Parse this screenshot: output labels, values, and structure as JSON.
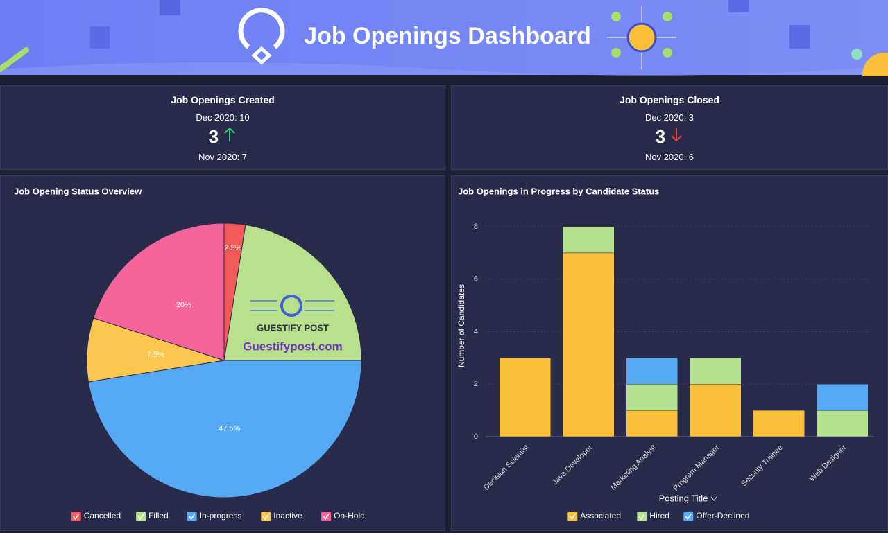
{
  "header": {
    "title": "Job Openings Dashboard"
  },
  "kpis": [
    {
      "title": "Job Openings Created",
      "current": "Dec 2020: 10",
      "value": 3,
      "previous": "Nov 2020: 7"
    },
    {
      "title": "Job Openings Closed",
      "current": "Dec 2020: 3",
      "value": 3,
      "previous": "Nov 2020: 6"
    }
  ],
  "watermark": {
    "brand": "GUESTIFY POST",
    "site": "Guestifypost.com"
  },
  "chart_data": [
    {
      "type": "pie",
      "title": "Job Opening Status Overview",
      "categories": [
        "Cancelled",
        "Filled",
        "In-progress",
        "Inactive",
        "On-Hold"
      ],
      "values": [
        2.5,
        22.5,
        47.5,
        7.5,
        20
      ],
      "value_labels": [
        "2.5%",
        null,
        "47.5%",
        "7.5%",
        "20%"
      ],
      "colors": [
        "#f25a5a",
        "#b9e08c",
        "#55a9f5",
        "#fbc74e",
        "#f5649a"
      ]
    },
    {
      "type": "stacked_bar",
      "title": "Job Openings in Progress by Candidate Status",
      "categories": [
        "Decision Scientist",
        "Java Developer",
        "Marketing Analyst",
        "Program Manager",
        "Security Trainee",
        "Web Designer"
      ],
      "series": [
        {
          "name": "Associated",
          "color": "#fbbf3a",
          "values": [
            3,
            7,
            1,
            2,
            1,
            0
          ]
        },
        {
          "name": "Hired",
          "color": "#b5e08f",
          "values": [
            0,
            1,
            1,
            1,
            0,
            1
          ]
        },
        {
          "name": "Offer-Declined",
          "color": "#55a9f5",
          "values": [
            0,
            0,
            1,
            0,
            0,
            1
          ]
        }
      ],
      "ylim": [
        0,
        8
      ],
      "yticks": [
        0,
        2,
        4,
        6,
        8
      ],
      "y_label": "Number of Candidates",
      "x_label": "Posting Title",
      "grid": true
    }
  ]
}
